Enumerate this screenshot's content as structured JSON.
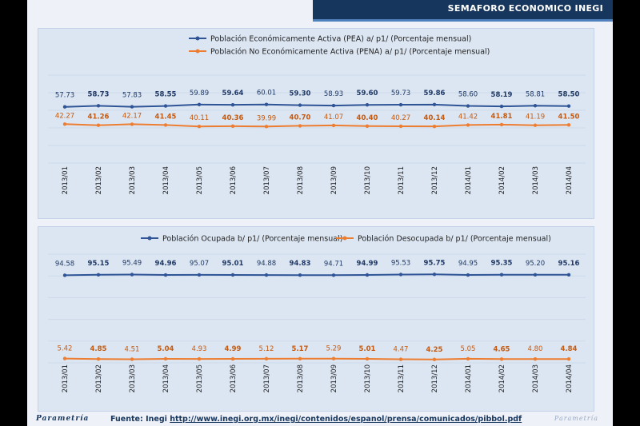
{
  "header": {
    "title": "SEMAFORO ECONOMICO INEGI"
  },
  "footer": {
    "logo": "Parametría",
    "source_label": "Fuente: Inegi ",
    "source_url": "http://www.inegi.org.mx/inegi/contenidos/espanol/prensa/comunicados/pibbol.pdf",
    "right_logo": "Parametría"
  },
  "colors": {
    "series_blue": "#2f5597",
    "series_orange": "#ed7d31",
    "value_blue": "#1f3864",
    "value_orange": "#c55a11"
  },
  "chart_data": [
    {
      "type": "line",
      "categories": [
        "2013/01",
        "2013/02",
        "2013/03",
        "2013/04",
        "2013/05",
        "2013/06",
        "2013/07",
        "2013/08",
        "2013/09",
        "2013/10",
        "2013/11",
        "2013/12",
        "2014/01",
        "2014/02",
        "2014/03",
        "2014/04"
      ],
      "series": [
        {
          "name": "Población Económicamente Activa (PEA) a/ p1/ (Porcentaje mensual)",
          "color": "#2f5597",
          "values": [
            57.73,
            58.73,
            57.83,
            58.55,
            59.89,
            59.64,
            60.01,
            59.3,
            58.93,
            59.6,
            59.73,
            59.86,
            58.6,
            58.19,
            58.81,
            58.5
          ],
          "labels": [
            "57.73",
            "58.73",
            "57.83",
            "58.55",
            "59.89",
            "59.64",
            "60.01",
            "59.30",
            "58.93",
            "59.60",
            "59.73",
            "59.86",
            "58.60",
            "58.19",
            "58.81",
            "58.50"
          ]
        },
        {
          "name": "Población No Económicamente Activa (PENA) a/ p1/ (Porcentaje mensual)",
          "color": "#ed7d31",
          "values": [
            42.27,
            41.26,
            42.17,
            41.45,
            40.11,
            40.36,
            39.99,
            40.7,
            41.07,
            40.4,
            40.27,
            40.14,
            41.42,
            41.81,
            41.19,
            41.5
          ],
          "labels": [
            "42.27",
            "41.26",
            "42.17",
            "41.45",
            "40.11",
            "40.36",
            "39.99",
            "40.70",
            "41.07",
            "40.40",
            "40.27",
            "40.14",
            "41.42",
            "41.81",
            "41.19",
            "41.50"
          ]
        }
      ],
      "legend": "top"
    },
    {
      "type": "line",
      "categories": [
        "2013/01",
        "2013/02",
        "2013/03",
        "2013/04",
        "2013/05",
        "2013/06",
        "2013/07",
        "2013/08",
        "2013/09",
        "2013/10",
        "2013/11",
        "2013/12",
        "2014/01",
        "2014/02",
        "2014/03",
        "2014/04"
      ],
      "series": [
        {
          "name": "Población Ocupada b/ p1/ (Porcentaje mensual)",
          "color": "#2f5597",
          "values": [
            94.58,
            95.15,
            95.49,
            94.96,
            95.07,
            95.01,
            94.88,
            94.83,
            94.71,
            94.99,
            95.53,
            95.75,
            94.95,
            95.35,
            95.2,
            95.16
          ],
          "labels": [
            "94.58",
            "95.15",
            "95.49",
            "94.96",
            "95.07",
            "95.01",
            "94.88",
            "94.83",
            "94.71",
            "94.99",
            "95.53",
            "95.75",
            "94.95",
            "95.35",
            "95.20",
            "95.16"
          ]
        },
        {
          "name": "Población Desocupada b/ p1/ (Porcentaje mensual)",
          "color": "#ed7d31",
          "values": [
            5.42,
            4.85,
            4.51,
            5.04,
            4.93,
            4.99,
            5.12,
            5.17,
            5.29,
            5.01,
            4.47,
            4.25,
            5.05,
            4.65,
            4.8,
            4.84
          ],
          "labels": [
            "5.42",
            "4.85",
            "4.51",
            "5.04",
            "4.93",
            "4.99",
            "5.12",
            "5.17",
            "5.29",
            "5.01",
            "4.47",
            "4.25",
            "5.05",
            "4.65",
            "4.80",
            "4.84"
          ]
        }
      ],
      "legend": "top"
    }
  ]
}
